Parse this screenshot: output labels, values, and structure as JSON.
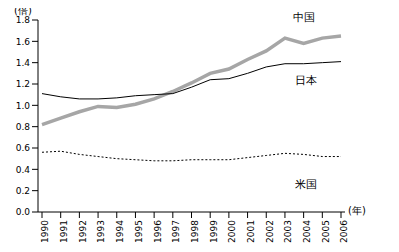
{
  "chart_data": {
    "type": "line",
    "y_label": "(倍)",
    "x_label": "(年)",
    "categories": [
      "1990",
      "1991",
      "1992",
      "1993",
      "1994",
      "1995",
      "1996",
      "1997",
      "1998",
      "1999",
      "2000",
      "2001",
      "2002",
      "2003",
      "2004",
      "2005",
      "2006"
    ],
    "series": [
      {
        "name": "中国",
        "color": "#a6a6a6",
        "line_style": "solid",
        "values": [
          0.82,
          0.88,
          0.94,
          0.99,
          0.98,
          1.01,
          1.06,
          1.13,
          1.21,
          1.3,
          1.34,
          1.43,
          1.51,
          1.63,
          1.58,
          1.63,
          1.65
        ]
      },
      {
        "name": "日本",
        "color": "#000000",
        "line_style": "solid",
        "values": [
          1.11,
          1.08,
          1.06,
          1.06,
          1.07,
          1.09,
          1.1,
          1.11,
          1.17,
          1.24,
          1.25,
          1.3,
          1.36,
          1.39,
          1.39,
          1.4,
          1.41
        ]
      },
      {
        "name": "米国",
        "color": "#000000",
        "line_style": "dotted",
        "values": [
          0.56,
          0.57,
          0.54,
          0.52,
          0.5,
          0.49,
          0.48,
          0.48,
          0.49,
          0.49,
          0.49,
          0.51,
          0.53,
          0.55,
          0.54,
          0.52,
          0.52
        ]
      }
    ],
    "ylim": [
      0,
      1.8
    ],
    "yticks": [
      {
        "value": 0,
        "label": "0.0"
      },
      0.2,
      0.4,
      0.6,
      0.8,
      {
        "value": 1,
        "label": "1.0"
      },
      1.2,
      1.4,
      1.6,
      1.8
    ],
    "grid": false,
    "legend": "none"
  }
}
